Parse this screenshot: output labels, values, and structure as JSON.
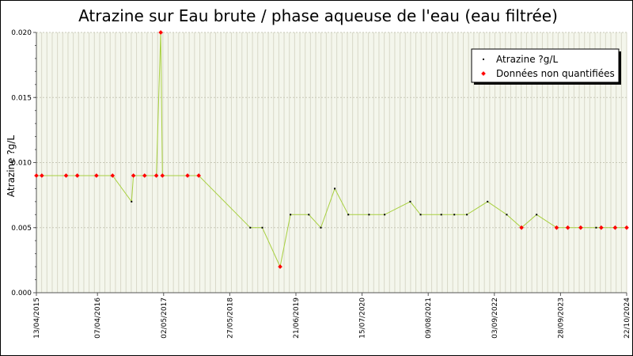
{
  "chart_data": {
    "type": "line",
    "title": "Atrazine sur Eau brute / phase aqueuse de l'eau (eau filtrée)",
    "ylabel": "Atrazine ?g/L",
    "xlabel": "",
    "x_range": [
      "2015-04-13",
      "2024-10-22"
    ],
    "ylim": [
      0,
      0.02
    ],
    "y_ticks": [
      "0.000",
      "0.005",
      "0.010",
      "0.015",
      "0.020"
    ],
    "y_tick_values": [
      0,
      0.005,
      0.01,
      0.015,
      0.02
    ],
    "x_ticks": [
      "13/04/2015",
      "07/04/2016",
      "02/05/2017",
      "27/05/2018",
      "21/06/2019",
      "15/07/2020",
      "09/08/2021",
      "03/09/2022",
      "28/09/2023",
      "22/10/2024"
    ],
    "grid": true,
    "legend_position": "top-right",
    "colors": {
      "line": "#a8d040",
      "quantified": "#000000",
      "unquantified": "#ff0000",
      "grid": "#d8d8c8",
      "background": "#f4f6ec"
    },
    "legend": [
      {
        "label": "Atrazine ?g/L",
        "kind": "quantified"
      },
      {
        "label": "Données non quantifiées",
        "kind": "unquantified"
      }
    ],
    "series": [
      {
        "name": "Atrazine ?g/L",
        "points": [
          {
            "date": "2015-04-13",
            "value": 0.009,
            "quantified": false
          },
          {
            "date": "2015-05-15",
            "value": 0.009,
            "quantified": false
          },
          {
            "date": "2015-10-05",
            "value": 0.009,
            "quantified": false
          },
          {
            "date": "2015-12-10",
            "value": 0.009,
            "quantified": false
          },
          {
            "date": "2016-04-01",
            "value": 0.009,
            "quantified": false
          },
          {
            "date": "2016-07-05",
            "value": 0.009,
            "quantified": false
          },
          {
            "date": "2016-10-25",
            "value": 0.007,
            "quantified": true
          },
          {
            "date": "2016-11-05",
            "value": 0.009,
            "quantified": false
          },
          {
            "date": "2017-01-10",
            "value": 0.009,
            "quantified": false
          },
          {
            "date": "2017-03-20",
            "value": 0.009,
            "quantified": false
          },
          {
            "date": "2017-04-15",
            "value": 0.02,
            "quantified": false
          },
          {
            "date": "2017-04-25",
            "value": 0.009,
            "quantified": false
          },
          {
            "date": "2017-09-20",
            "value": 0.009,
            "quantified": false
          },
          {
            "date": "2017-11-25",
            "value": 0.009,
            "quantified": false
          },
          {
            "date": "2018-09-25",
            "value": 0.005,
            "quantified": true
          },
          {
            "date": "2018-12-05",
            "value": 0.005,
            "quantified": true
          },
          {
            "date": "2019-03-20",
            "value": 0.002,
            "quantified": false
          },
          {
            "date": "2019-05-20",
            "value": 0.006,
            "quantified": true
          },
          {
            "date": "2019-09-05",
            "value": 0.006,
            "quantified": true
          },
          {
            "date": "2019-11-15",
            "value": 0.005,
            "quantified": true
          },
          {
            "date": "2020-02-05",
            "value": 0.008,
            "quantified": true
          },
          {
            "date": "2020-04-25",
            "value": 0.006,
            "quantified": true
          },
          {
            "date": "2020-08-25",
            "value": 0.006,
            "quantified": true
          },
          {
            "date": "2020-11-25",
            "value": 0.006,
            "quantified": true
          },
          {
            "date": "2021-04-25",
            "value": 0.007,
            "quantified": true
          },
          {
            "date": "2021-06-25",
            "value": 0.006,
            "quantified": true
          },
          {
            "date": "2021-10-25",
            "value": 0.006,
            "quantified": true
          },
          {
            "date": "2022-01-10",
            "value": 0.006,
            "quantified": true
          },
          {
            "date": "2022-03-25",
            "value": 0.006,
            "quantified": true
          },
          {
            "date": "2022-07-25",
            "value": 0.007,
            "quantified": true
          },
          {
            "date": "2022-11-15",
            "value": 0.006,
            "quantified": true
          },
          {
            "date": "2023-02-10",
            "value": 0.005,
            "quantified": false
          },
          {
            "date": "2023-05-10",
            "value": 0.006,
            "quantified": true
          },
          {
            "date": "2023-09-05",
            "value": 0.005,
            "quantified": false
          },
          {
            "date": "2023-11-10",
            "value": 0.005,
            "quantified": false
          },
          {
            "date": "2024-01-25",
            "value": 0.005,
            "quantified": false
          },
          {
            "date": "2024-04-25",
            "value": 0.005,
            "quantified": true
          },
          {
            "date": "2024-05-25",
            "value": 0.005,
            "quantified": false
          },
          {
            "date": "2024-08-15",
            "value": 0.005,
            "quantified": false
          },
          {
            "date": "2024-10-22",
            "value": 0.005,
            "quantified": false
          }
        ]
      }
    ]
  }
}
